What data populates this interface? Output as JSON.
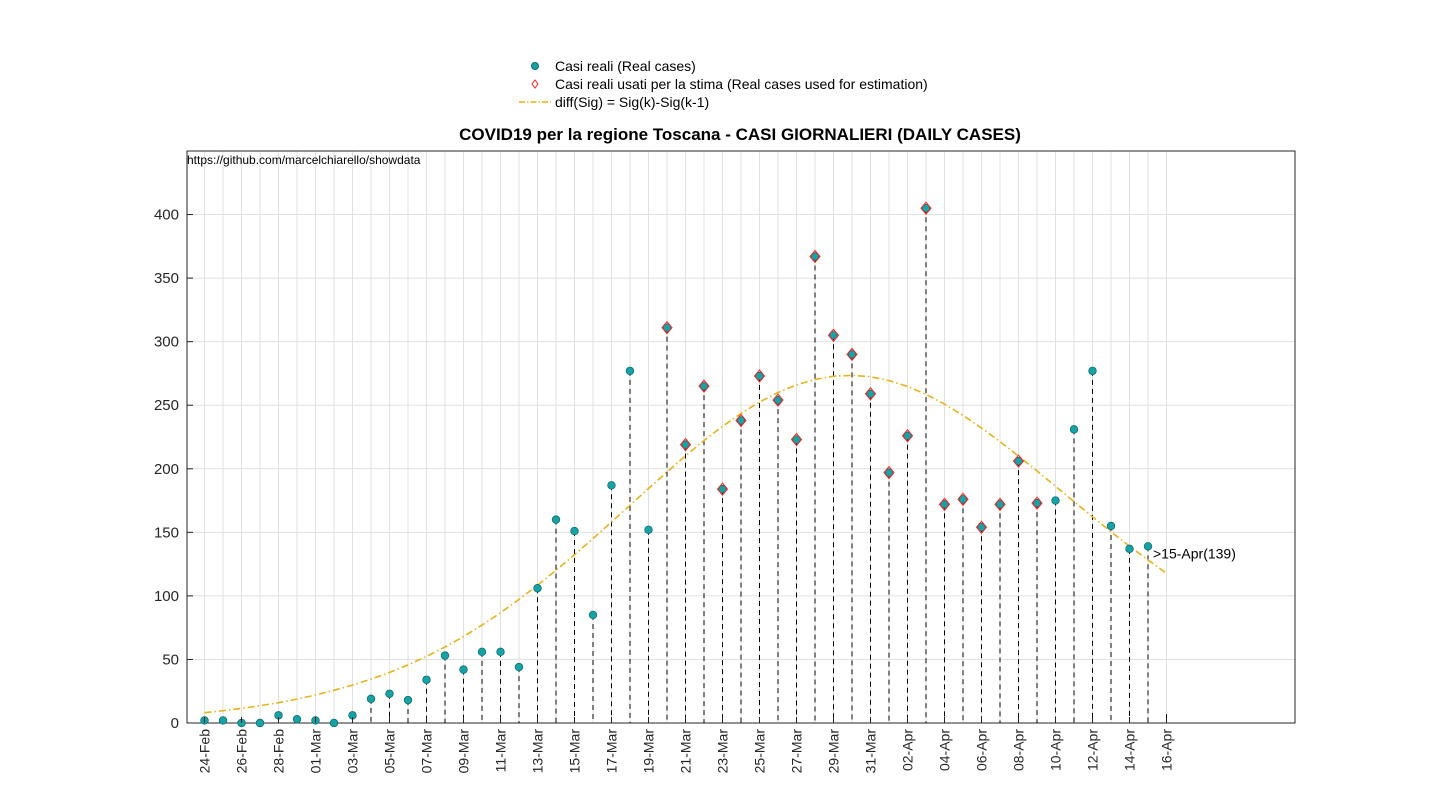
{
  "chart_data": {
    "type": "scatter",
    "title": "COVID19 per la regione Toscana - CASI GIORNALIERI (DAILY CASES)",
    "source_note": "https://github.com/marcelchiarello/showdata",
    "annotation": ">15-Apr(139)",
    "xlabel": "",
    "ylabel": "",
    "ylim": [
      0,
      450
    ],
    "yticks": [
      0,
      50,
      100,
      150,
      200,
      250,
      300,
      350,
      400
    ],
    "grid": true,
    "legend_placement": "top-center",
    "x_tick_labels": [
      "24-Feb",
      "26-Feb",
      "28-Feb",
      "01-Mar",
      "03-Mar",
      "05-Mar",
      "07-Mar",
      "09-Mar",
      "11-Mar",
      "13-Mar",
      "15-Mar",
      "17-Mar",
      "19-Mar",
      "21-Mar",
      "23-Mar",
      "25-Mar",
      "27-Mar",
      "29-Mar",
      "31-Mar",
      "02-Apr",
      "04-Apr",
      "06-Apr",
      "08-Apr",
      "10-Apr",
      "12-Apr",
      "14-Apr",
      "16-Apr"
    ],
    "x_dates": [
      "24-Feb",
      "25-Feb",
      "26-Feb",
      "27-Feb",
      "28-Feb",
      "29-Feb",
      "01-Mar",
      "02-Mar",
      "03-Mar",
      "04-Mar",
      "05-Mar",
      "06-Mar",
      "07-Mar",
      "08-Mar",
      "09-Mar",
      "10-Mar",
      "11-Mar",
      "12-Mar",
      "13-Mar",
      "14-Mar",
      "15-Mar",
      "16-Mar",
      "17-Mar",
      "18-Mar",
      "19-Mar",
      "20-Mar",
      "21-Mar",
      "22-Mar",
      "23-Mar",
      "24-Mar",
      "25-Mar",
      "26-Mar",
      "27-Mar",
      "28-Mar",
      "29-Mar",
      "30-Mar",
      "31-Mar",
      "01-Apr",
      "02-Apr",
      "03-Apr",
      "04-Apr",
      "05-Apr",
      "06-Apr",
      "07-Apr",
      "08-Apr",
      "09-Apr",
      "10-Apr",
      "11-Apr",
      "12-Apr",
      "13-Apr",
      "14-Apr",
      "15-Apr",
      "16-Apr"
    ],
    "series": [
      {
        "name": "Casi reali (Real cases)",
        "marker": "circle",
        "color": "#17a2a6",
        "values": [
          2,
          2,
          0,
          0,
          6,
          3,
          2,
          0,
          6,
          19,
          23,
          18,
          34,
          53,
          42,
          56,
          56,
          44,
          106,
          160,
          151,
          85,
          187,
          277,
          152,
          311,
          219,
          265,
          184,
          238,
          273,
          254,
          223,
          367,
          305,
          290,
          259,
          197,
          226,
          405,
          172,
          176,
          154,
          172,
          206,
          173,
          175,
          231,
          277,
          155,
          137,
          139
        ]
      },
      {
        "name": "Casi reali usati per la stima (Real cases used for estimation)",
        "marker": "diamond",
        "color": "#ff2020",
        "used_dates": [
          "20-Mar",
          "21-Mar",
          "22-Mar",
          "23-Mar",
          "24-Mar",
          "25-Mar",
          "26-Mar",
          "27-Mar",
          "28-Mar",
          "29-Mar",
          "30-Mar",
          "31-Mar",
          "01-Apr",
          "02-Apr",
          "03-Apr",
          "04-Apr",
          "05-Apr",
          "06-Apr",
          "07-Apr",
          "08-Apr",
          "09-Apr"
        ]
      },
      {
        "name": "diff(Sig) = Sig(k)-Sig(k-1)",
        "line_style": "dash-dot",
        "color": "#e8b21a",
        "values": [
          8.1,
          9.7,
          11.5,
          13.6,
          16.0,
          18.8,
          22.0,
          25.7,
          29.8,
          34.5,
          39.7,
          45.7,
          52.4,
          59.8,
          68.0,
          77.0,
          86.7,
          97.2,
          108.3,
          120.1,
          132.4,
          145.1,
          158.1,
          171.3,
          184.5,
          197.5,
          210.2,
          222.2,
          233.4,
          243.5,
          252.5,
          260.0,
          266.0,
          270.3,
          272.8,
          273.5,
          272.4,
          269.4,
          264.8,
          258.6,
          250.9,
          242.0,
          232.1,
          221.4,
          210.0,
          198.3,
          186.2,
          174.2,
          162.2,
          150.5,
          139.1,
          128.2,
          117.8
        ]
      }
    ]
  }
}
